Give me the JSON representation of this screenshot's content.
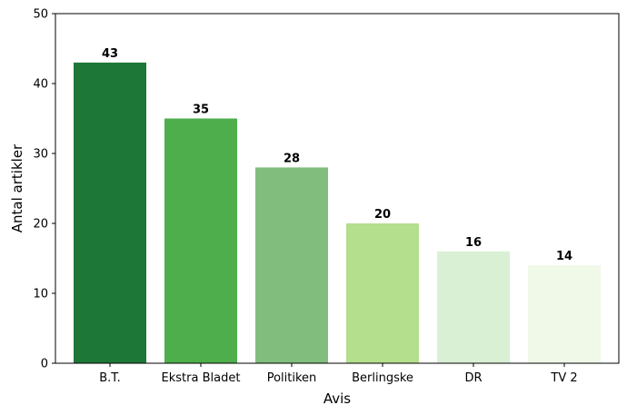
{
  "chart_data": {
    "type": "bar",
    "title": "",
    "xlabel": "Avis",
    "ylabel": "Antal artikler",
    "ylim": [
      0,
      50
    ],
    "yticks": [
      0,
      10,
      20,
      30,
      40,
      50
    ],
    "grid": false,
    "categories": [
      "B.T.",
      "Ekstra Bladet",
      "Politiken",
      "Berlingske",
      "DR",
      "TV 2"
    ],
    "values": [
      43,
      35,
      28,
      20,
      16,
      14
    ],
    "colors": [
      "#1d7737",
      "#4eae4b",
      "#81be7e",
      "#b4df8c",
      "#d9f0d4",
      "#f0f8e7"
    ],
    "data_labels": [
      "43",
      "35",
      "28",
      "20",
      "16",
      "14"
    ]
  }
}
